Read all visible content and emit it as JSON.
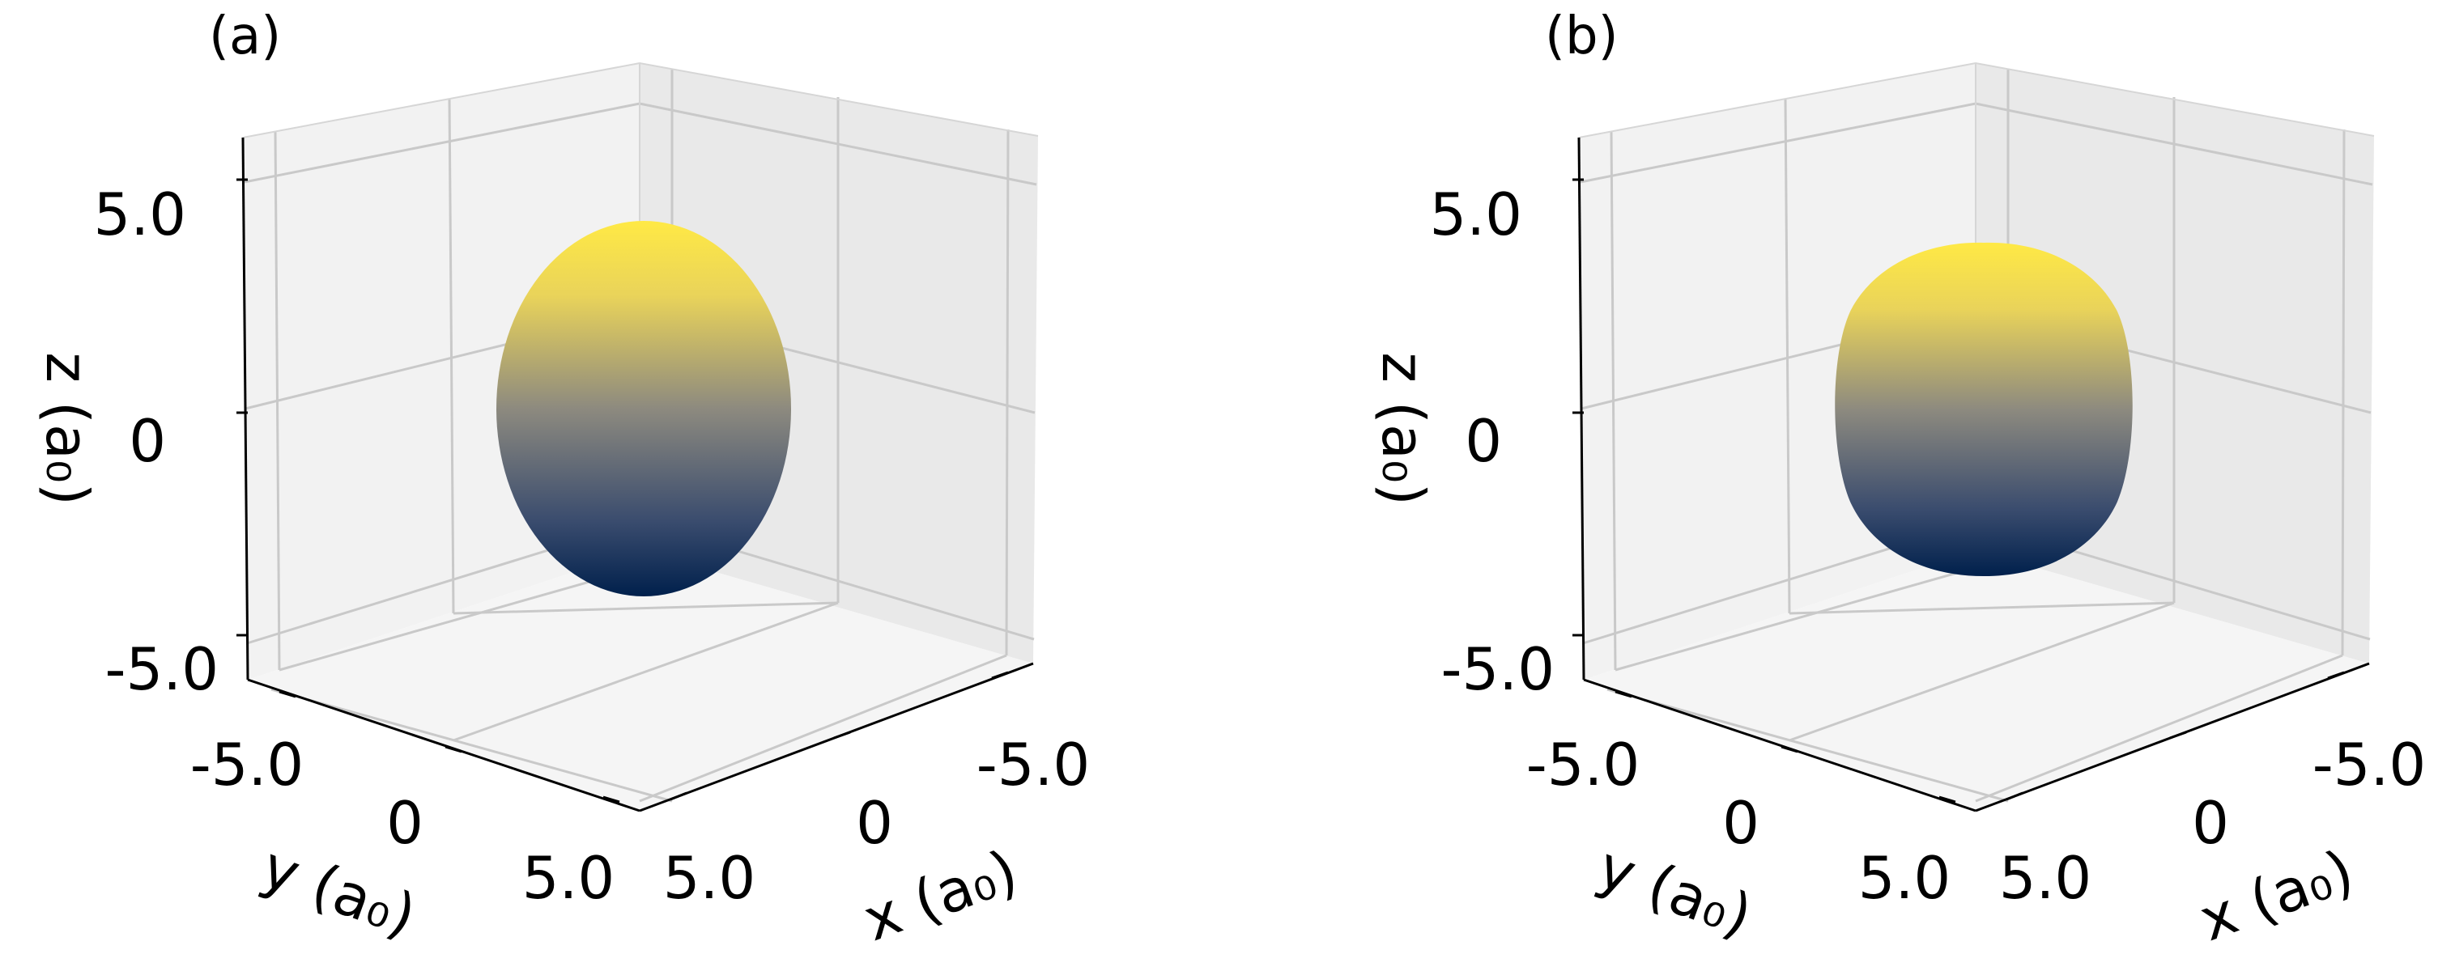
{
  "panels": [
    {
      "label": "(a)"
    },
    {
      "label": "(b)"
    }
  ],
  "colormap": {
    "low": "#00204c",
    "mid": "#7c7b78",
    "high": "#ffe945"
  },
  "chart_data": [
    {
      "type": "3d-surface",
      "panel": "(a)",
      "shape": "prolate ellipsoid",
      "semi_axes": {
        "x": 3.5,
        "y": 3.5,
        "z": 4.5
      },
      "xlabel": "x (a₀)",
      "ylabel": "y (a₀)",
      "zlabel": "z (a₀)",
      "xticks": [
        "-5.0",
        "0",
        "5.0"
      ],
      "yticks": [
        "-5.0",
        "0",
        "5.0"
      ],
      "zticks": [
        "-5.0",
        "0",
        "5.0"
      ],
      "xlim": [
        -6,
        6
      ],
      "ylim": [
        -6,
        6
      ],
      "zlim": [
        -6,
        6
      ],
      "grid": true,
      "colormap": "cividis (by z)"
    },
    {
      "type": "3d-surface",
      "panel": "(b)",
      "shape": "rounded cuboid",
      "semi_axes": {
        "x": 3.8,
        "y": 3.8,
        "z": 4.0
      },
      "xlabel": "x (a₀)",
      "ylabel": "y (a₀)",
      "zlabel": "z (a₀)",
      "xticks": [
        "-5.0",
        "0",
        "5.0"
      ],
      "yticks": [
        "-5.0",
        "0",
        "5.0"
      ],
      "zticks": [
        "-5.0",
        "0",
        "5.0"
      ],
      "xlim": [
        -6,
        6
      ],
      "ylim": [
        -6,
        6
      ],
      "zlim": [
        -6,
        6
      ],
      "grid": true,
      "colormap": "cividis (by z)"
    }
  ]
}
